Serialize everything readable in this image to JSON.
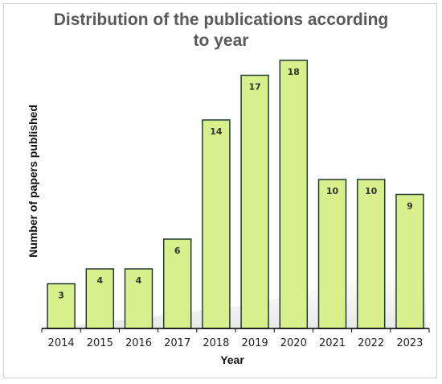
{
  "chart_data": {
    "type": "bar",
    "title_lines": [
      "Distribution of the publications according",
      "to year"
    ],
    "xlabel": "Year",
    "ylabel": "Number of papers published",
    "categories": [
      "2014",
      "2015",
      "2016",
      "2017",
      "2018",
      "2019",
      "2020",
      "2021",
      "2022",
      "2023"
    ],
    "values": [
      3,
      4,
      4,
      6,
      14,
      17,
      18,
      10,
      10,
      9
    ],
    "ylim": [
      0,
      18
    ],
    "grid": false,
    "data_labels": true,
    "bar_color": "#d8f08c",
    "bar_edge_color": "#1f3a36",
    "title_color": "#595959"
  }
}
